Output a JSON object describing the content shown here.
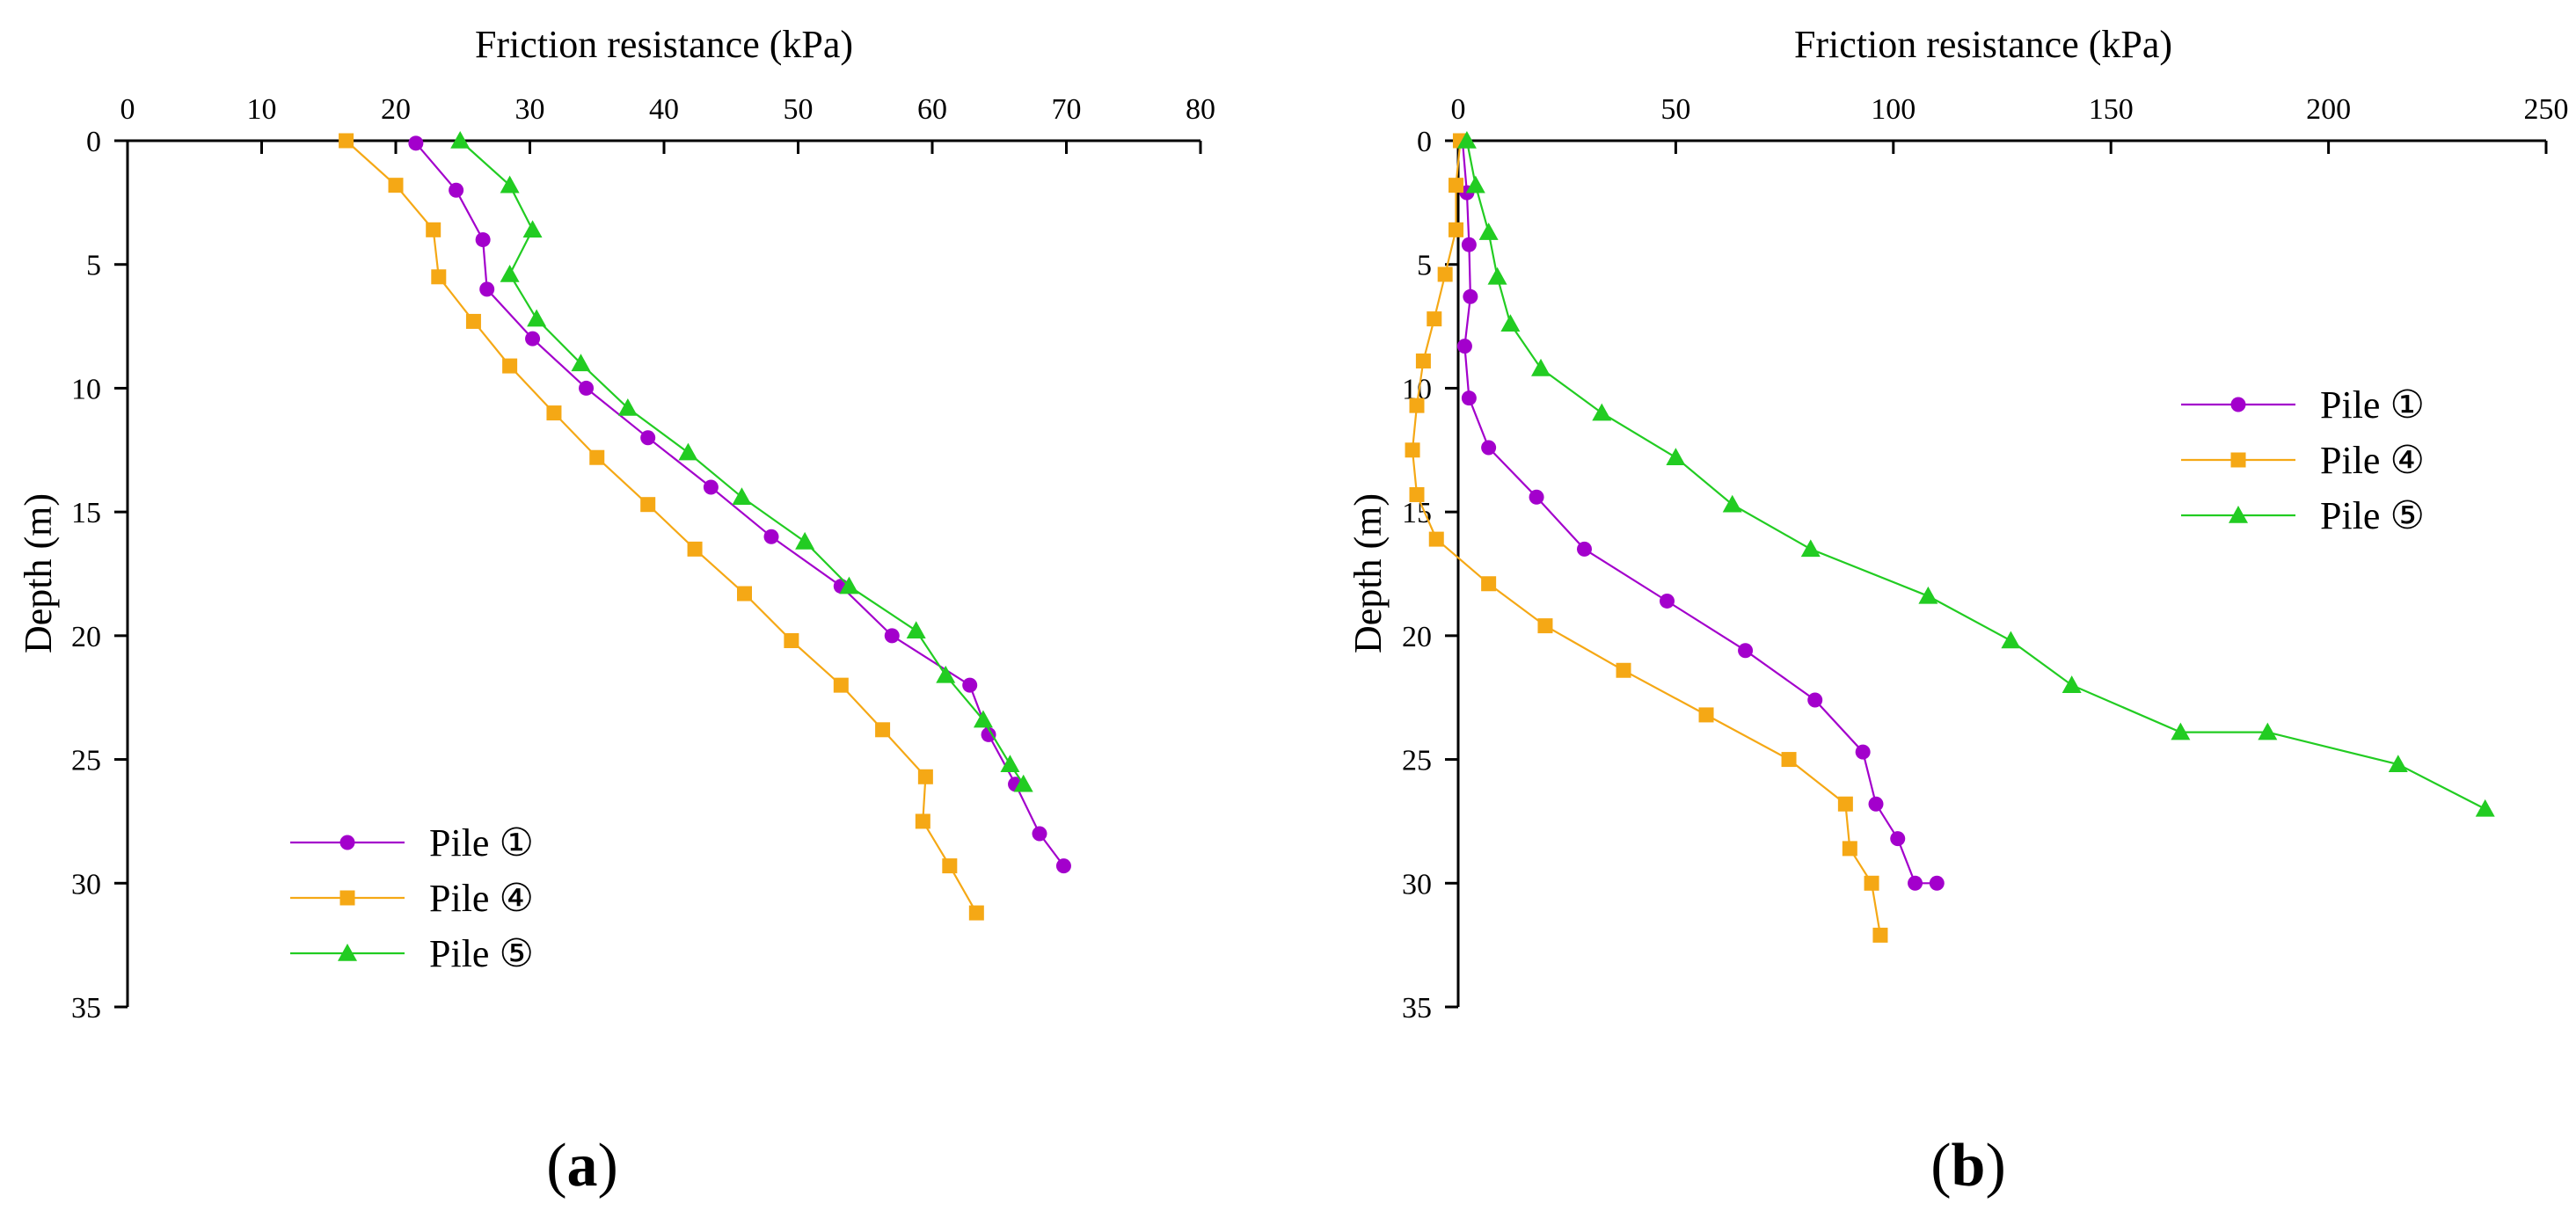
{
  "chart_data": [
    {
      "type": "line",
      "panel_label": {
        "open": "(",
        "letter": "a",
        "close": ")"
      },
      "title": "",
      "xlabel": "Friction resistance (kPa)",
      "ylabel": "Depth (m)",
      "x_axis_position": "top",
      "y_inverted": true,
      "xlim": [
        0,
        80
      ],
      "ylim": [
        0,
        35
      ],
      "xticks": [
        0,
        10,
        20,
        30,
        40,
        50,
        60,
        70,
        80
      ],
      "yticks": [
        0,
        5,
        10,
        15,
        20,
        25,
        30,
        35
      ],
      "grid": false,
      "legend_position": "bottom-left",
      "series": [
        {
          "name": "Pile ①",
          "color": "#a300cc",
          "marker": "circle",
          "points": [
            [
              21.5,
              0.1
            ],
            [
              24.5,
              2.0
            ],
            [
              26.5,
              4.0
            ],
            [
              26.8,
              6.0
            ],
            [
              30.2,
              8.0
            ],
            [
              34.2,
              10.0
            ],
            [
              38.8,
              12.0
            ],
            [
              43.5,
              14.0
            ],
            [
              48.0,
              16.0
            ],
            [
              53.2,
              18.0
            ],
            [
              57.0,
              20.0
            ],
            [
              62.8,
              22.0
            ],
            [
              64.2,
              24.0
            ],
            [
              66.2,
              26.0
            ],
            [
              68.0,
              28.0
            ],
            [
              69.8,
              29.3
            ]
          ]
        },
        {
          "name": "Pile ④",
          "color": "#f5a815",
          "marker": "square",
          "points": [
            [
              16.3,
              0.0
            ],
            [
              20.0,
              1.8
            ],
            [
              22.8,
              3.6
            ],
            [
              23.2,
              5.5
            ],
            [
              25.8,
              7.3
            ],
            [
              28.5,
              9.1
            ],
            [
              31.8,
              11.0
            ],
            [
              35.0,
              12.8
            ],
            [
              38.8,
              14.7
            ],
            [
              42.3,
              16.5
            ],
            [
              46.0,
              18.3
            ],
            [
              49.5,
              20.2
            ],
            [
              53.2,
              22.0
            ],
            [
              56.3,
              23.8
            ],
            [
              59.5,
              25.7
            ],
            [
              59.3,
              27.5
            ],
            [
              61.3,
              29.3
            ],
            [
              63.3,
              31.2
            ]
          ]
        },
        {
          "name": "Pile ⑤",
          "color": "#22cc22",
          "marker": "triangle",
          "points": [
            [
              24.8,
              0.0
            ],
            [
              28.5,
              1.8
            ],
            [
              30.2,
              3.6
            ],
            [
              28.5,
              5.4
            ],
            [
              30.5,
              7.2
            ],
            [
              33.8,
              9.0
            ],
            [
              37.3,
              10.8
            ],
            [
              41.8,
              12.6
            ],
            [
              45.8,
              14.4
            ],
            [
              50.5,
              16.2
            ],
            [
              53.8,
              18.0
            ],
            [
              58.8,
              19.8
            ],
            [
              61.0,
              21.6
            ],
            [
              63.8,
              23.4
            ],
            [
              65.8,
              25.2
            ],
            [
              66.8,
              26.0
            ]
          ]
        }
      ]
    },
    {
      "type": "line",
      "panel_label": {
        "open": "(",
        "letter": "b",
        "close": ")"
      },
      "title": "",
      "xlabel": "Friction resistance (kPa)",
      "ylabel": "Depth (m)",
      "x_axis_position": "top",
      "y_inverted": true,
      "xlim": [
        0,
        250
      ],
      "ylim": [
        0,
        35
      ],
      "xticks": [
        0,
        50,
        100,
        150,
        200,
        250
      ],
      "yticks": [
        0,
        5,
        10,
        15,
        20,
        25,
        30,
        35
      ],
      "grid": false,
      "legend_position": "center-right",
      "series": [
        {
          "name": "Pile ①",
          "color": "#a300cc",
          "marker": "circle",
          "points": [
            [
              1.0,
              0.0
            ],
            [
              2.0,
              2.1
            ],
            [
              2.5,
              4.2
            ],
            [
              2.8,
              6.3
            ],
            [
              1.5,
              8.3
            ],
            [
              2.5,
              10.4
            ],
            [
              7.0,
              12.4
            ],
            [
              18.0,
              14.4
            ],
            [
              29.0,
              16.5
            ],
            [
              48.0,
              18.6
            ],
            [
              66.0,
              20.6
            ],
            [
              82.0,
              22.6
            ],
            [
              93.0,
              24.7
            ],
            [
              96.0,
              26.8
            ],
            [
              101.0,
              28.2
            ],
            [
              105.0,
              30.0
            ],
            [
              110.0,
              30.0
            ]
          ]
        },
        {
          "name": "Pile ④",
          "color": "#f5a815",
          "marker": "square",
          "points": [
            [
              0.5,
              0.0
            ],
            [
              -0.5,
              1.8
            ],
            [
              -0.5,
              3.6
            ],
            [
              -3.0,
              5.4
            ],
            [
              -5.5,
              7.2
            ],
            [
              -8.0,
              8.9
            ],
            [
              -9.5,
              10.7
            ],
            [
              -10.5,
              12.5
            ],
            [
              -9.5,
              14.3
            ],
            [
              -5.0,
              16.1
            ],
            [
              7.0,
              17.9
            ],
            [
              20.0,
              19.6
            ],
            [
              38.0,
              21.4
            ],
            [
              57.0,
              23.2
            ],
            [
              76.0,
              25.0
            ],
            [
              89.0,
              26.8
            ],
            [
              90.0,
              28.6
            ],
            [
              95.0,
              30.0
            ],
            [
              97.0,
              32.1
            ]
          ]
        },
        {
          "name": "Pile ⑤",
          "color": "#22cc22",
          "marker": "triangle",
          "points": [
            [
              2.0,
              0.0
            ],
            [
              4.0,
              1.8
            ],
            [
              7.0,
              3.7
            ],
            [
              9.0,
              5.5
            ],
            [
              12.0,
              7.4
            ],
            [
              19.0,
              9.2
            ],
            [
              33.0,
              11.0
            ],
            [
              50.0,
              12.8
            ],
            [
              63.0,
              14.7
            ],
            [
              81.0,
              16.5
            ],
            [
              108.0,
              18.4
            ],
            [
              127.0,
              20.2
            ],
            [
              141.0,
              22.0
            ],
            [
              166.0,
              23.9
            ],
            [
              186.0,
              23.9
            ],
            [
              216.0,
              25.2
            ],
            [
              236.0,
              27.0
            ]
          ]
        }
      ]
    }
  ]
}
